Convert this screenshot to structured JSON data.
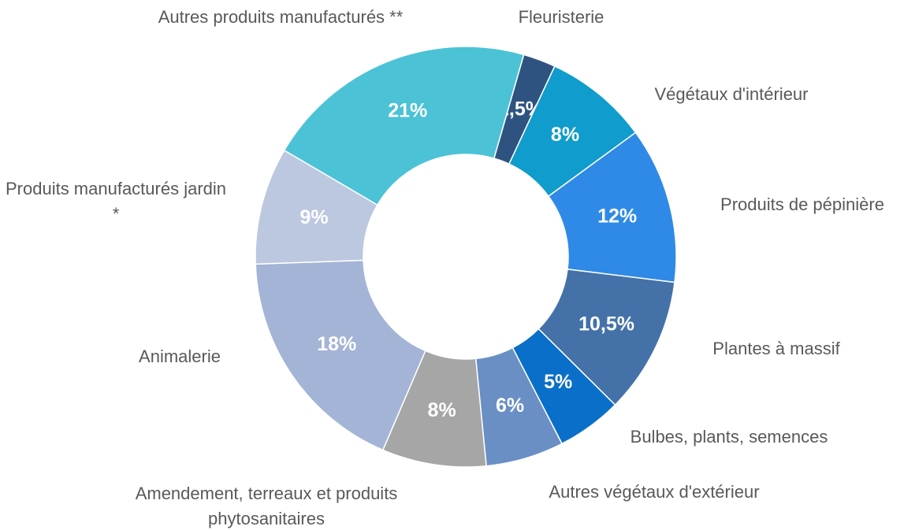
{
  "chart_data": {
    "type": "donut",
    "categories": [
      "Fleuristerie",
      "Végétaux d'intérieur",
      "Produits de pépinière",
      "Plantes à massif",
      "Bulbes, plants, semences",
      "Autres végétaux d'extérieur",
      "Amendement, terreaux et produits phytosanitaires",
      "Animalerie",
      "Produits manufacturés jardin *",
      "Autres produits manufacturés **"
    ],
    "values": [
      2.5,
      8,
      12,
      10.5,
      5,
      6,
      8,
      18,
      9,
      21
    ],
    "value_labels": [
      "2,5%",
      "8%",
      "12%",
      "10,5%",
      "5%",
      "6%",
      "8%",
      "18%",
      "9%",
      "21%"
    ],
    "colors": [
      "#2e5380",
      "#109ccc",
      "#2e8ae6",
      "#4472a8",
      "#0a6fc8",
      "#6a8fc4",
      "#a6a6a6",
      "#a3b4d6",
      "#bcc7e0",
      "#4bc2d6"
    ]
  }
}
